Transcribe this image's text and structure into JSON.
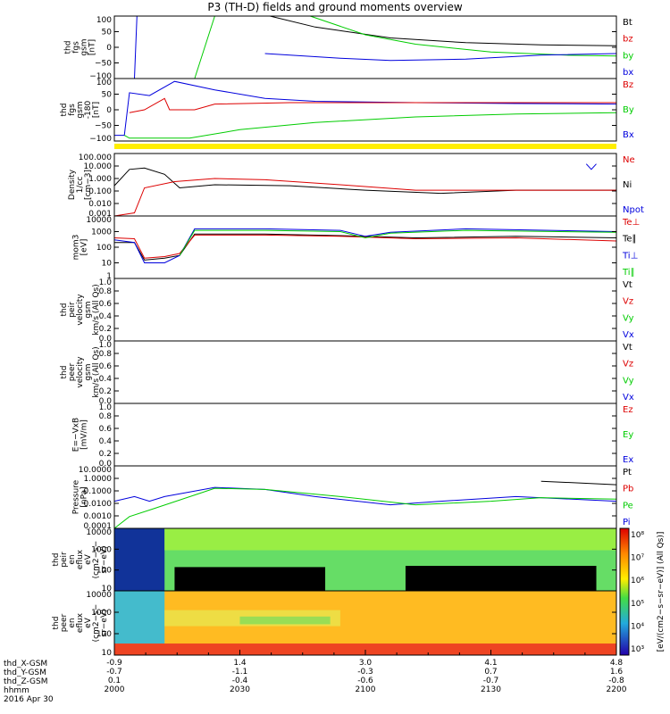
{
  "title": "P3 (TH-D) fields and ground moments overview",
  "colors": {
    "black": "#000000",
    "red": "#dd0000",
    "green": "#00cc00",
    "blue": "#0000dd",
    "yellow": "#ffee00"
  },
  "chart_data": {
    "type": "line",
    "time_axis": {
      "ticks": [
        {
          "hhmm": "2000",
          "X": "-0.9",
          "Y": "-0.7",
          "Z": "0.1"
        },
        {
          "hhmm": "2030",
          "X": "1.4",
          "Y": "-1.1",
          "Z": "-0.4"
        },
        {
          "hhmm": "2100",
          "X": "3.0",
          "Y": "-0.3",
          "Z": "-0.6"
        },
        {
          "hhmm": "2130",
          "X": "4.1",
          "Y": "0.7",
          "Z": "-0.7"
        },
        {
          "hhmm": "2200",
          "X": "4.8",
          "Y": "1.6",
          "Z": "-0.8"
        }
      ],
      "row_labels": [
        "thd_X-GSM",
        "thd_Y-GSM",
        "thd_Z-GSM",
        "hhmm"
      ],
      "date": "2016 Apr 30"
    },
    "panels": [
      {
        "ylabel": [
          "thd",
          "fgs",
          "gsm",
          "[nT]"
        ],
        "scale": "linear",
        "yticks": [
          "100",
          "50",
          "0",
          "−50",
          "−100"
        ],
        "legend": [
          {
            "name": "Bt",
            "color": "black"
          },
          {
            "name": "bz",
            "color": "red"
          },
          {
            "name": "by",
            "color": "green"
          },
          {
            "name": "bx",
            "color": "blue"
          }
        ]
      },
      {
        "ylabel": [
          "thd",
          "fgs",
          "gsm",
          "-180",
          "[nT]"
        ],
        "scale": "linear",
        "yticks": [
          "100",
          "50",
          "0",
          "−50",
          "−100"
        ],
        "legend": [
          {
            "name": "Bz",
            "color": "red"
          },
          {
            "name": "By",
            "color": "green"
          },
          {
            "name": "Bx",
            "color": "blue"
          }
        ]
      },
      {
        "ylabel": [
          "Density",
          "1/cc",
          "[cm−3]"
        ],
        "scale": "log",
        "yticks": [
          "100.000",
          "10.000",
          "1.000",
          "0.100",
          "0.010",
          "0.001"
        ],
        "legend": [
          {
            "name": "Ne",
            "color": "red"
          },
          {
            "name": "Ni",
            "color": "black"
          },
          {
            "name": "Npot",
            "color": "blue"
          }
        ]
      },
      {
        "ylabel": [
          "mom3",
          "[eV]"
        ],
        "scale": "log",
        "yticks": [
          "10000",
          "1000",
          "100",
          "10",
          "1"
        ],
        "legend": [
          {
            "name": "Te⊥",
            "color": "red"
          },
          {
            "name": "Te∥",
            "color": "black"
          },
          {
            "name": "Ti⊥",
            "color": "blue"
          },
          {
            "name": "Ti∥",
            "color": "green"
          }
        ]
      },
      {
        "ylabel": [
          "thd",
          "peir",
          "velocity",
          "gsm",
          "km/s (All Qs)"
        ],
        "scale": "linear",
        "yticks": [
          "1.0",
          "0.8",
          "0.6",
          "0.4",
          "0.2",
          "0.0"
        ],
        "legend": [
          {
            "name": "Vt",
            "color": "black"
          },
          {
            "name": "Vz",
            "color": "red"
          },
          {
            "name": "Vy",
            "color": "green"
          },
          {
            "name": "Vx",
            "color": "blue"
          }
        ]
      },
      {
        "ylabel": [
          "thd",
          "peer",
          "velocity",
          "gsm",
          "km/s (All Qs)"
        ],
        "scale": "linear",
        "yticks": [
          "1.0",
          "0.8",
          "0.6",
          "0.4",
          "0.2",
          "0.0"
        ],
        "legend": [
          {
            "name": "Vt",
            "color": "black"
          },
          {
            "name": "Vz",
            "color": "red"
          },
          {
            "name": "Vy",
            "color": "green"
          },
          {
            "name": "Vx",
            "color": "blue"
          }
        ]
      },
      {
        "ylabel": [
          "E=−VxB",
          "[mV/m]"
        ],
        "scale": "linear",
        "yticks": [
          "1.0",
          "0.8",
          "0.6",
          "0.4",
          "0.2",
          "0.0"
        ],
        "legend": [
          {
            "name": "Ez",
            "color": "red"
          },
          {
            "name": "Ey",
            "color": "green"
          },
          {
            "name": "Ex",
            "color": "blue"
          }
        ]
      },
      {
        "ylabel": [
          "Pressure",
          "[nPa]"
        ],
        "scale": "log",
        "yticks": [
          "10.0000",
          "1.0000",
          "0.1000",
          "0.0100",
          "0.0010",
          "0.0001"
        ],
        "legend": [
          {
            "name": "Pt",
            "color": "black"
          },
          {
            "name": "Pb",
            "color": "red"
          },
          {
            "name": "Pe",
            "color": "green"
          },
          {
            "name": "Pi",
            "color": "blue"
          }
        ]
      },
      {
        "ylabel": [
          "thd",
          "peir",
          "en",
          "eflux",
          "eV",
          "(cm2−s−",
          "sr−eV)"
        ],
        "scale": "log",
        "yticks": [
          "10000",
          "1000",
          "100",
          "10"
        ],
        "spectrogram": "ion"
      },
      {
        "ylabel": [
          "thd",
          "peer",
          "en",
          "eflux",
          "eV",
          "(cm2−s−",
          "sr−eV)"
        ],
        "scale": "log",
        "yticks": [
          "10000",
          "1000",
          "100",
          "10"
        ],
        "spectrogram": "electron"
      }
    ],
    "colorbar": {
      "label": "[eV/(cm2−s−sr−eV)] (All Qs)]",
      "ticks": [
        "10⁸",
        "10⁷",
        "10⁶",
        "10⁵",
        "10⁴",
        "10³"
      ]
    },
    "series_shapes": {
      "p0": {
        "bx": [
          [
            0.0,
            -100
          ],
          [
            0.04,
            -100
          ],
          [
            0.045,
            100
          ]
        ],
        "by": [
          [
            0.16,
            -100
          ],
          [
            0.2,
            100
          ]
        ],
        "Bt": [
          [
            0.31,
            100
          ],
          [
            0.4,
            65
          ],
          [
            0.55,
            30
          ],
          [
            0.7,
            15
          ],
          [
            0.85,
            8
          ],
          [
            1.0,
            5
          ]
        ],
        "by_tail": [
          [
            0.39,
            100
          ],
          [
            0.5,
            40
          ],
          [
            0.6,
            10
          ],
          [
            0.75,
            -15
          ],
          [
            0.9,
            -25
          ],
          [
            1.0,
            -28
          ]
        ],
        "bx_tail": [
          [
            0.3,
            -20
          ],
          [
            0.45,
            -35
          ],
          [
            0.55,
            -42
          ],
          [
            0.7,
            -38
          ],
          [
            0.85,
            -25
          ],
          [
            1.0,
            -20
          ]
        ]
      },
      "p1": {
        "Bx": [
          [
            0.0,
            -100
          ],
          [
            0.02,
            -100
          ],
          [
            0.03,
            50
          ],
          [
            0.07,
            40
          ],
          [
            0.12,
            90
          ],
          [
            0.2,
            60
          ],
          [
            0.3,
            30
          ],
          [
            0.4,
            20
          ],
          [
            0.6,
            15
          ],
          [
            0.8,
            12
          ],
          [
            1.0,
            10
          ]
        ],
        "Bz": [
          [
            0.03,
            -20
          ],
          [
            0.06,
            -10
          ],
          [
            0.1,
            30
          ],
          [
            0.11,
            -10
          ],
          [
            0.16,
            -10
          ],
          [
            0.2,
            10
          ],
          [
            0.35,
            15
          ],
          [
            0.6,
            15
          ],
          [
            1.0,
            15
          ]
        ],
        "By": [
          [
            0.02,
            -100
          ],
          [
            0.03,
            -110
          ],
          [
            0.15,
            -110
          ],
          [
            0.25,
            -80
          ],
          [
            0.4,
            -55
          ],
          [
            0.6,
            -35
          ],
          [
            0.8,
            -25
          ],
          [
            1.0,
            -20
          ]
        ]
      },
      "p2": {
        "Ni": [
          [
            0.0,
            0.8
          ],
          [
            0.03,
            30
          ],
          [
            0.06,
            40
          ],
          [
            0.1,
            10
          ],
          [
            0.13,
            0.5
          ],
          [
            0.2,
            1
          ],
          [
            0.35,
            0.8
          ],
          [
            0.5,
            0.3
          ],
          [
            0.65,
            0.15
          ],
          [
            0.8,
            0.3
          ],
          [
            1.0,
            0.3
          ]
        ],
        "Ne": [
          [
            0.0,
            0.001
          ],
          [
            0.04,
            0.002
          ],
          [
            0.06,
            0.5
          ],
          [
            0.12,
            2
          ],
          [
            0.2,
            4
          ],
          [
            0.3,
            3
          ],
          [
            0.45,
            1
          ],
          [
            0.6,
            0.3
          ],
          [
            0.75,
            0.3
          ],
          [
            0.85,
            0.3
          ],
          [
            1.0,
            0.3
          ]
        ],
        "Npot": [
          [
            0.94,
            100
          ],
          [
            0.95,
            30
          ],
          [
            0.96,
            100
          ]
        ]
      },
      "p3": {
        "Te_par": [
          [
            0.0,
            200
          ],
          [
            0.04,
            200
          ],
          [
            0.06,
            15
          ],
          [
            0.1,
            20
          ],
          [
            0.13,
            30
          ],
          [
            0.16,
            700
          ],
          [
            0.3,
            700
          ],
          [
            0.45,
            550
          ],
          [
            0.6,
            400
          ],
          [
            0.8,
            500
          ],
          [
            1.0,
            400
          ]
        ],
        "Te_perp": [
          [
            0.0,
            400
          ],
          [
            0.04,
            350
          ],
          [
            0.06,
            20
          ],
          [
            0.1,
            25
          ],
          [
            0.13,
            40
          ],
          [
            0.16,
            600
          ],
          [
            0.3,
            600
          ],
          [
            0.45,
            500
          ],
          [
            0.6,
            350
          ],
          [
            0.8,
            400
          ],
          [
            1.0,
            250
          ]
        ],
        "Ti_perp": [
          [
            0.0,
            300
          ],
          [
            0.04,
            200
          ],
          [
            0.06,
            10
          ],
          [
            0.1,
            10
          ],
          [
            0.13,
            30
          ],
          [
            0.16,
            1500
          ],
          [
            0.3,
            1500
          ],
          [
            0.45,
            1200
          ],
          [
            0.5,
            500
          ],
          [
            0.55,
            900
          ],
          [
            0.7,
            1500
          ],
          [
            1.0,
            1000
          ]
        ],
        "Ti_par": [
          [
            0.13,
            30
          ],
          [
            0.16,
            1200
          ],
          [
            0.3,
            1200
          ],
          [
            0.45,
            1000
          ],
          [
            0.5,
            400
          ],
          [
            0.55,
            800
          ],
          [
            0.7,
            1200
          ],
          [
            1.0,
            900
          ]
        ]
      },
      "p7": {
        "Pi": [
          [
            0.0,
            0.02
          ],
          [
            0.04,
            0.05
          ],
          [
            0.07,
            0.02
          ],
          [
            0.1,
            0.05
          ],
          [
            0.2,
            0.3
          ],
          [
            0.3,
            0.2
          ],
          [
            0.4,
            0.05
          ],
          [
            0.55,
            0.01
          ],
          [
            0.65,
            0.02
          ],
          [
            0.8,
            0.05
          ],
          [
            1.0,
            0.02
          ]
        ],
        "Pe": [
          [
            0.0,
            0.0001
          ],
          [
            0.03,
            0.001
          ],
          [
            0.08,
            0.005
          ],
          [
            0.2,
            0.25
          ],
          [
            0.3,
            0.2
          ],
          [
            0.45,
            0.05
          ],
          [
            0.6,
            0.01
          ],
          [
            0.75,
            0.02
          ],
          [
            0.85,
            0.04
          ],
          [
            1.0,
            0.03
          ]
        ],
        "Pt": [
          [
            0.85,
            1.0
          ],
          [
            1.0,
            0.5
          ]
        ]
      }
    }
  }
}
